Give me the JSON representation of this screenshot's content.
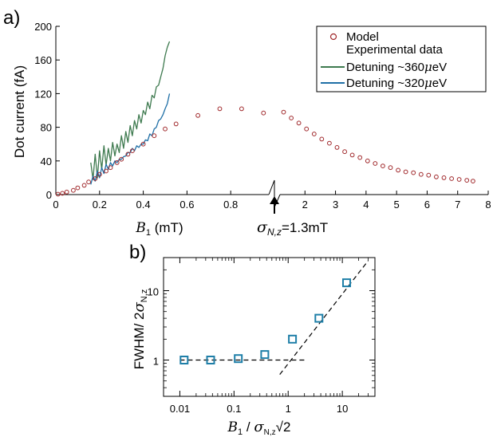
{
  "chart_data": [
    {
      "panel_label": "a)",
      "type": "scatter",
      "xlabel": {
        "symbol": "B",
        "sub": "1",
        "unit": " (mT)"
      },
      "ylabel": "Dot current (fA)",
      "xlim": [
        0,
        8
      ],
      "ylim": [
        0,
        200
      ],
      "x_break": 1.0,
      "x_ticks_low": [
        0,
        0.2,
        0.4,
        0.6,
        0.8
      ],
      "x_ticks_high": [
        2,
        3,
        4,
        5,
        6,
        7,
        8
      ],
      "x_tick_labels_low": [
        "0",
        "0.2",
        "0.4",
        "0.6",
        "0.8"
      ],
      "x_tick_labels_high": [
        "2",
        "3",
        "4",
        "5",
        "6",
        "7",
        "8"
      ],
      "y_ticks": [
        0,
        40,
        80,
        120,
        160,
        200
      ],
      "y_tick_labels": [
        "0",
        "40",
        "80",
        "120",
        "160",
        "200"
      ],
      "annotation": {
        "symbol": "σ",
        "sub": "N,z",
        "text": "=1.3mT"
      },
      "legend": {
        "position": "top-right",
        "model_label": "Model",
        "exp_label": "Experimental data",
        "series1_label_a": "Detuning ~360",
        "series1_mu": "μ",
        "series1_label_b": "eV",
        "series2_label_a": "Detuning ~320",
        "series2_mu": "μ",
        "series2_label_b": "eV"
      },
      "colors": {
        "model": "#a0282b",
        "series1": "#3e7a4f",
        "series2": "#1f6fa6"
      },
      "model": {
        "x": [
          0.01,
          0.03,
          0.05,
          0.08,
          0.1,
          0.13,
          0.15,
          0.18,
          0.2,
          0.23,
          0.25,
          0.28,
          0.3,
          0.33,
          0.35,
          0.4,
          0.45,
          0.5,
          0.55,
          0.65,
          0.75,
          0.85,
          0.95,
          1.3,
          1.55,
          1.8,
          2.05,
          2.3,
          2.55,
          2.8,
          3.05,
          3.3,
          3.55,
          3.8,
          4.05,
          4.3,
          4.55,
          4.8,
          5.05,
          5.3,
          5.55,
          5.8,
          6.05,
          6.3,
          6.55,
          6.8,
          7.05,
          7.3,
          7.5
        ],
        "y": [
          0.5,
          1.5,
          3,
          5,
          8,
          11,
          15,
          19,
          24,
          28,
          32,
          38,
          42,
          48,
          52,
          60,
          70,
          78,
          84,
          94,
          102,
          102,
          97,
          98,
          91,
          85,
          78,
          72,
          66,
          61,
          56,
          51,
          47,
          44,
          40,
          37,
          34,
          32,
          29,
          27,
          26,
          24,
          23,
          21,
          20,
          19,
          18,
          17,
          16
        ]
      },
      "series": [
        {
          "name": "Detuning ~360μeV",
          "x": [
            0.16,
            0.17,
            0.18,
            0.19,
            0.2,
            0.21,
            0.22,
            0.23,
            0.24,
            0.25,
            0.26,
            0.27,
            0.28,
            0.29,
            0.3,
            0.31,
            0.32,
            0.33,
            0.34,
            0.35,
            0.36,
            0.37,
            0.38,
            0.39,
            0.4,
            0.41,
            0.42,
            0.43,
            0.44,
            0.45,
            0.46,
            0.47,
            0.48,
            0.49,
            0.5,
            0.51,
            0.52
          ],
          "y": [
            38,
            18,
            48,
            20,
            52,
            30,
            58,
            35,
            55,
            40,
            62,
            46,
            60,
            50,
            70,
            55,
            75,
            62,
            82,
            70,
            88,
            78,
            95,
            85,
            100,
            95,
            110,
            102,
            118,
            115,
            128,
            130,
            140,
            150,
            165,
            175,
            182
          ]
        },
        {
          "name": "Detuning ~320μeV",
          "x": [
            0.16,
            0.17,
            0.18,
            0.19,
            0.2,
            0.21,
            0.22,
            0.23,
            0.24,
            0.25,
            0.26,
            0.27,
            0.28,
            0.29,
            0.3,
            0.31,
            0.32,
            0.33,
            0.34,
            0.35,
            0.36,
            0.37,
            0.38,
            0.39,
            0.4,
            0.41,
            0.42,
            0.43,
            0.44,
            0.45,
            0.46,
            0.47,
            0.48,
            0.49,
            0.5,
            0.51,
            0.52
          ],
          "y": [
            12,
            22,
            16,
            28,
            20,
            32,
            25,
            36,
            30,
            38,
            34,
            40,
            38,
            42,
            42,
            45,
            46,
            50,
            50,
            55,
            52,
            58,
            56,
            60,
            60,
            65,
            64,
            72,
            70,
            78,
            80,
            88,
            90,
            95,
            102,
            108,
            120
          ]
        }
      ]
    },
    {
      "panel_label": "b)",
      "type": "scatter",
      "xscale": "log",
      "yscale": "log",
      "xlim": [
        0.005,
        40
      ],
      "ylim": [
        0.3,
        30
      ],
      "ylabel": {
        "text": "FWHM/ 2",
        "symbol": "σ",
        "sub": "N,z"
      },
      "xlabel": {
        "symbol": "B",
        "sub1": "1",
        "sep": " / ",
        "symbol2": "σ",
        "sub2": "N,z",
        "sqrt": "√2"
      },
      "x_ticks": [
        0.01,
        0.1,
        1,
        10
      ],
      "x_tick_labels": [
        "0.01",
        "0.1",
        "1",
        "10"
      ],
      "y_ticks": [
        1,
        10
      ],
      "y_tick_labels": [
        "1",
        "10"
      ],
      "colors": {
        "marker": "#1f7fa8",
        "line": "#000000"
      },
      "points": {
        "x": [
          0.012,
          0.037,
          0.12,
          0.37,
          1.2,
          3.7,
          12
        ],
        "y": [
          1.0,
          1.0,
          1.05,
          1.2,
          2.0,
          4.0,
          13.0
        ]
      },
      "asymptotes": [
        {
          "x": [
            0.01,
            2
          ],
          "y": [
            1,
            1
          ]
        },
        {
          "x": [
            0.7,
            30
          ],
          "y": [
            0.62,
            27
          ]
        }
      ]
    }
  ]
}
